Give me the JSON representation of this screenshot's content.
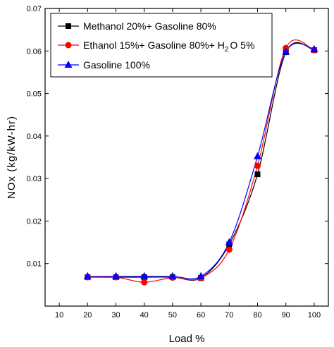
{
  "chart_data": {
    "type": "line",
    "xlabel": "Load %",
    "ylabel": "NOx (kg/kW-hr)",
    "xlim": [
      5,
      105
    ],
    "ylim": [
      0,
      0.07
    ],
    "xticks": [
      "10",
      "20",
      "30",
      "40",
      "50",
      "60",
      "70",
      "80",
      "90",
      "100"
    ],
    "yticks": [
      "0.01",
      "0.02",
      "0.03",
      "0.04",
      "0.05",
      "0.06",
      "0.07"
    ],
    "grid": false,
    "legend_position": "top-left",
    "x": [
      20,
      30,
      40,
      50,
      60,
      70,
      80,
      90,
      100
    ],
    "series": [
      {
        "name": "Methanol 20%+ Gasoline 80%",
        "marker": "square",
        "color": "#000000",
        "values": [
          0.0068,
          0.0068,
          0.0068,
          0.0068,
          0.0066,
          0.0145,
          0.031,
          0.0597,
          0.0602
        ]
      },
      {
        "name": "Ethanol 15%+ Gasoline 80%+ H2O 5%",
        "legend_parts": [
          "Ethanol 15%+ Gasoline 80%+ H",
          "2",
          "O 5%"
        ],
        "marker": "circle",
        "color": "#ff0000",
        "values": [
          0.0068,
          0.0068,
          0.0056,
          0.0067,
          0.0066,
          0.0133,
          0.033,
          0.0607,
          0.0602
        ]
      },
      {
        "name": "Gasoline 100%",
        "marker": "triangle",
        "color": "#0000ff",
        "values": [
          0.007,
          0.007,
          0.007,
          0.007,
          0.007,
          0.015,
          0.0352,
          0.0598,
          0.0604
        ]
      }
    ]
  }
}
